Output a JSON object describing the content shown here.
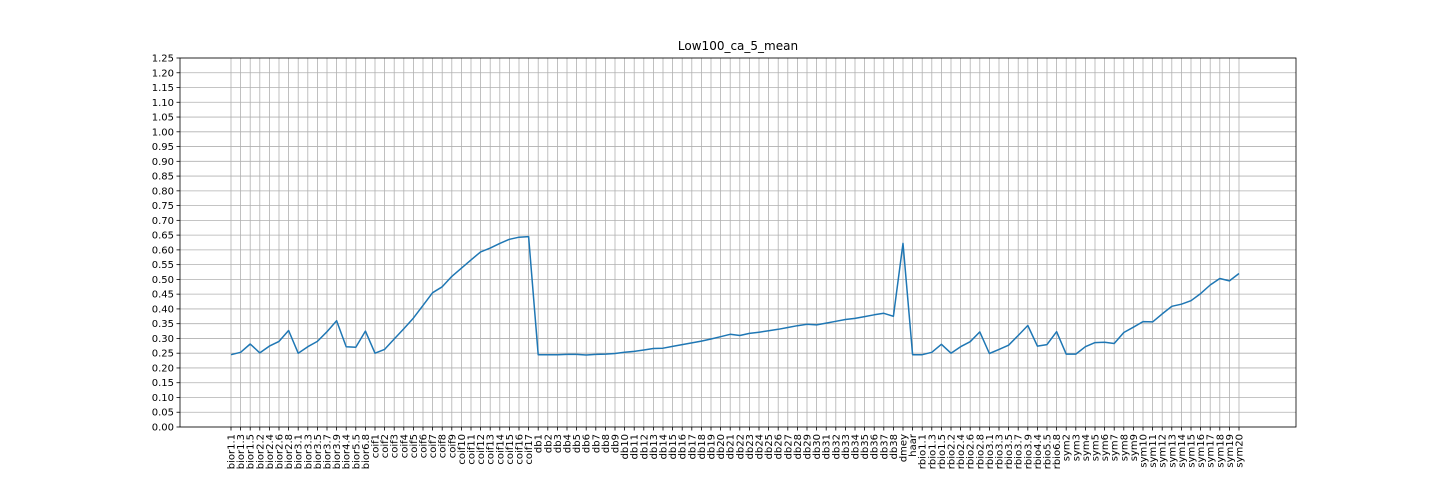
{
  "chart_data": {
    "type": "line",
    "title": "Low100_ca_5_mean",
    "xlabel": "",
    "ylabel": "",
    "ylim": [
      0,
      1.25
    ],
    "ytick_labels": [
      "0.00",
      "0.05",
      "0.10",
      "0.15",
      "0.20",
      "0.25",
      "0.30",
      "0.35",
      "0.40",
      "0.45",
      "0.50",
      "0.55",
      "0.60",
      "0.65",
      "0.70",
      "0.75",
      "0.80",
      "0.85",
      "0.90",
      "0.95",
      "1.00",
      "1.05",
      "1.10",
      "1.15",
      "1.20",
      "1.25"
    ],
    "grid": true,
    "legend": "none",
    "line_color": "#1f77b4",
    "categories": [
      "bior1.1",
      "bior1.3",
      "bior1.5",
      "bior2.2",
      "bior2.4",
      "bior2.6",
      "bior2.8",
      "bior3.1",
      "bior3.3",
      "bior3.5",
      "bior3.7",
      "bior3.9",
      "bior4.4",
      "bior5.5",
      "bior6.8",
      "coif1",
      "coif2",
      "coif3",
      "coif4",
      "coif5",
      "coif6",
      "coif7",
      "coif8",
      "coif9",
      "coif10",
      "coif11",
      "coif12",
      "coif13",
      "coif14",
      "coif15",
      "coif16",
      "coif17",
      "db1",
      "db2",
      "db3",
      "db4",
      "db5",
      "db6",
      "db7",
      "db8",
      "db9",
      "db10",
      "db11",
      "db12",
      "db13",
      "db14",
      "db15",
      "db16",
      "db17",
      "db18",
      "db19",
      "db20",
      "db21",
      "db22",
      "db23",
      "db24",
      "db25",
      "db26",
      "db27",
      "db28",
      "db29",
      "db30",
      "db31",
      "db32",
      "db33",
      "db34",
      "db35",
      "db36",
      "db37",
      "db38",
      "dmey",
      "haar",
      "rbio1.1",
      "rbio1.3",
      "rbio1.5",
      "rbio2.2",
      "rbio2.4",
      "rbio2.6",
      "rbio2.8",
      "rbio3.1",
      "rbio3.3",
      "rbio3.5",
      "rbio3.7",
      "rbio3.9",
      "rbio4.4",
      "rbio5.5",
      "rbio6.8",
      "sym2",
      "sym3",
      "sym4",
      "sym5",
      "sym6",
      "sym7",
      "sym8",
      "sym9",
      "sym10",
      "sym11",
      "sym12",
      "sym13",
      "sym14",
      "sym15",
      "sym16",
      "sym17",
      "sym18",
      "sym19",
      "sym20"
    ],
    "values": [
      0.245,
      0.253,
      0.281,
      0.251,
      0.274,
      0.29,
      0.327,
      0.25,
      0.272,
      0.29,
      0.323,
      0.36,
      0.272,
      0.27,
      0.325,
      0.25,
      0.263,
      0.298,
      0.333,
      0.369,
      0.412,
      0.455,
      0.475,
      0.51,
      0.538,
      0.566,
      0.593,
      0.606,
      0.622,
      0.636,
      0.643,
      0.645,
      0.245,
      0.245,
      0.245,
      0.246,
      0.246,
      0.244,
      0.246,
      0.247,
      0.249,
      0.253,
      0.256,
      0.261,
      0.266,
      0.267,
      0.273,
      0.279,
      0.285,
      0.291,
      0.298,
      0.306,
      0.314,
      0.31,
      0.317,
      0.321,
      0.326,
      0.331,
      0.337,
      0.343,
      0.348,
      0.346,
      0.352,
      0.358,
      0.364,
      0.368,
      0.374,
      0.38,
      0.385,
      0.375,
      0.622,
      0.245,
      0.245,
      0.253,
      0.28,
      0.25,
      0.272,
      0.289,
      0.322,
      0.249,
      0.263,
      0.277,
      0.31,
      0.344,
      0.274,
      0.279,
      0.323,
      0.247,
      0.247,
      0.272,
      0.286,
      0.287,
      0.283,
      0.32,
      0.338,
      0.357,
      0.356,
      0.383,
      0.409,
      0.416,
      0.428,
      0.452,
      0.481,
      0.503,
      0.495,
      0.52
    ]
  }
}
